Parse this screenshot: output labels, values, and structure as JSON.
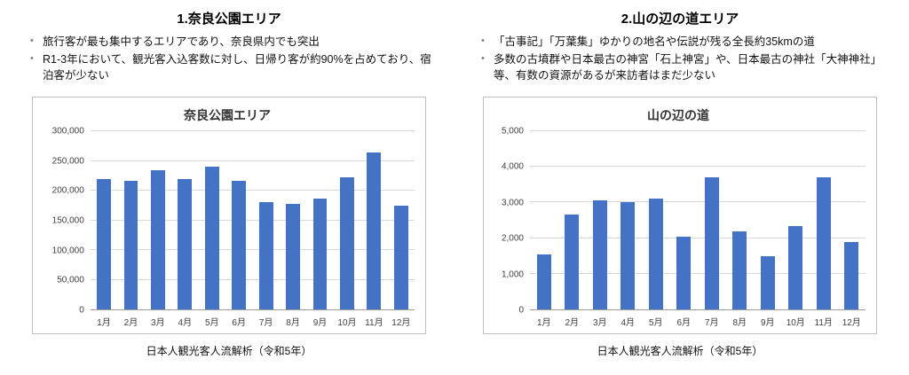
{
  "colors": {
    "bar": "#4472C4",
    "gridline": "#d9d9d9",
    "axis_line": "#9b9b9b",
    "tick_text": "#404040",
    "chart_border": "#bfbfbf"
  },
  "panels": [
    {
      "heading": "1.奈良公園エリア",
      "bullets": [
        "旅行客が最も集中するエリアであり、奈良県内でも突出",
        "R1-3年において、観光客入込客数に対し、日帰り客が約90%を占めており、宿泊客が少ない"
      ],
      "caption": "日本人観光客人流解析（令和5年）"
    },
    {
      "heading": "2.山の辺の道エリア",
      "bullets": [
        "「古事記」「万葉集」ゆかりの地名や伝説が残る全長約35kmの道",
        "多数の古墳群や日本最古の神宮「石上神宮」や、日本最古の神社「大神神社」等、有数の資源があるが来訪者はまだ少ない"
      ],
      "caption": "日本人観光客人流解析（令和5年）"
    }
  ],
  "chart_data": [
    {
      "type": "bar",
      "title": "奈良公園エリア",
      "categories": [
        "1月",
        "2月",
        "3月",
        "4月",
        "5月",
        "6月",
        "7月",
        "8月",
        "9月",
        "10月",
        "11月",
        "12月"
      ],
      "values": [
        220000,
        217000,
        235000,
        220000,
        240000,
        217000,
        180000,
        177000,
        187000,
        223000,
        264000,
        175000
      ],
      "xlabel": "",
      "ylabel": "",
      "ylim": [
        0,
        300000
      ],
      "ytick_step": 50000,
      "bar_color": "#4472C4",
      "grid": true,
      "legend": "none"
    },
    {
      "type": "bar",
      "title": "山の辺の道",
      "categories": [
        "1月",
        "2月",
        "3月",
        "4月",
        "5月",
        "6月",
        "7月",
        "8月",
        "9月",
        "10月",
        "11月",
        "12月"
      ],
      "values": [
        1550,
        2650,
        3050,
        3000,
        3100,
        2050,
        3700,
        2200,
        1500,
        2350,
        3700,
        1900
      ],
      "xlabel": "",
      "ylabel": "",
      "ylim": [
        0,
        5000
      ],
      "ytick_step": 1000,
      "bar_color": "#4472C4",
      "grid": true,
      "legend": "none"
    }
  ]
}
